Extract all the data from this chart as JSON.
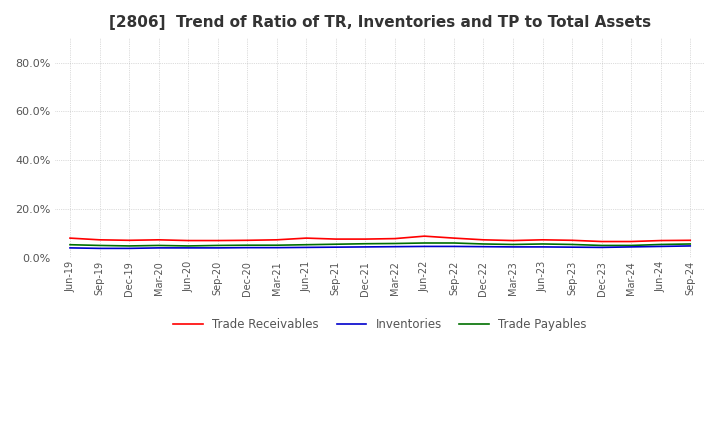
{
  "title": "[2806]  Trend of Ratio of TR, Inventories and TP to Total Assets",
  "title_fontsize": 11,
  "ylim": [
    0,
    0.9
  ],
  "yticks": [
    0.0,
    0.2,
    0.4,
    0.6,
    0.8
  ],
  "x_labels": [
    "Jun-19",
    "Sep-19",
    "Dec-19",
    "Mar-20",
    "Jun-20",
    "Sep-20",
    "Dec-20",
    "Mar-21",
    "Jun-21",
    "Sep-21",
    "Dec-21",
    "Mar-22",
    "Jun-22",
    "Sep-22",
    "Dec-22",
    "Mar-23",
    "Jun-23",
    "Sep-23",
    "Dec-23",
    "Mar-24",
    "Jun-24",
    "Sep-24"
  ],
  "trade_receivables": [
    0.082,
    0.075,
    0.073,
    0.075,
    0.072,
    0.072,
    0.073,
    0.075,
    0.082,
    0.078,
    0.078,
    0.08,
    0.09,
    0.082,
    0.075,
    0.072,
    0.075,
    0.073,
    0.068,
    0.068,
    0.072,
    0.073
  ],
  "inventories": [
    0.042,
    0.04,
    0.04,
    0.042,
    0.042,
    0.042,
    0.043,
    0.043,
    0.044,
    0.045,
    0.046,
    0.047,
    0.048,
    0.048,
    0.047,
    0.046,
    0.046,
    0.045,
    0.044,
    0.046,
    0.048,
    0.05
  ],
  "trade_payables": [
    0.055,
    0.052,
    0.05,
    0.052,
    0.05,
    0.052,
    0.053,
    0.053,
    0.055,
    0.057,
    0.059,
    0.06,
    0.062,
    0.062,
    0.058,
    0.056,
    0.058,
    0.056,
    0.052,
    0.052,
    0.056,
    0.058
  ],
  "tr_color": "#FF0000",
  "inv_color": "#0000CC",
  "tp_color": "#007000",
  "line_width": 1.2,
  "background_color": "#FFFFFF",
  "plot_bg_color": "#FFFFFF",
  "grid_color": "#AAAAAA",
  "legend_labels": [
    "Trade Receivables",
    "Inventories",
    "Trade Payables"
  ]
}
